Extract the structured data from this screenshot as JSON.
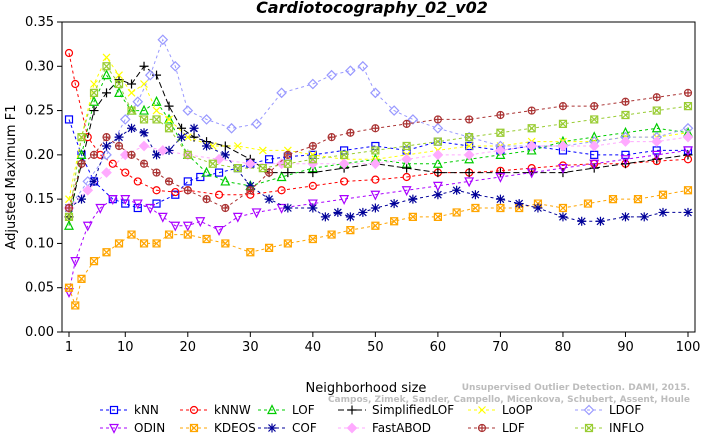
{
  "chart_data": {
    "type": "line",
    "title": "Cardiotocography_02_v02",
    "xlabel": "Neighborhood size",
    "ylabel": "Adjusted Maximum F1",
    "xlim": [
      1,
      100
    ],
    "ylim": [
      0,
      0.35
    ],
    "x_ticks": [
      1,
      10,
      20,
      30,
      40,
      50,
      60,
      70,
      80,
      90,
      100
    ],
    "y_ticks": [
      "0.00",
      "0.05",
      "0.10",
      "0.15",
      "0.20",
      "0.25",
      "0.30",
      "0.35"
    ],
    "grid": false,
    "legend_position": "bottom",
    "series": [
      {
        "name": "kNN",
        "color": "#0000ff",
        "marker": "square",
        "dash": "3,3",
        "x": [
          1,
          3,
          5,
          8,
          10,
          12,
          15,
          18,
          20,
          22,
          25,
          28,
          30,
          33,
          36,
          40,
          45,
          50,
          55,
          60,
          65,
          70,
          75,
          80,
          85,
          90,
          95,
          100
        ],
        "y": [
          0.24,
          0.2,
          0.17,
          0.15,
          0.145,
          0.14,
          0.145,
          0.155,
          0.17,
          0.175,
          0.18,
          0.185,
          0.19,
          0.195,
          0.198,
          0.2,
          0.205,
          0.21,
          0.205,
          0.215,
          0.21,
          0.205,
          0.21,
          0.205,
          0.2,
          0.2,
          0.205,
          0.205
        ]
      },
      {
        "name": "kNNW",
        "color": "#ff0000",
        "marker": "circle",
        "dash": "3,3",
        "x": [
          1,
          2,
          4,
          6,
          8,
          10,
          12,
          15,
          18,
          20,
          25,
          30,
          35,
          40,
          45,
          50,
          55,
          60,
          65,
          70,
          75,
          80,
          85,
          90,
          95,
          100
        ],
        "y": [
          0.315,
          0.28,
          0.22,
          0.2,
          0.19,
          0.18,
          0.17,
          0.16,
          0.158,
          0.16,
          0.155,
          0.155,
          0.16,
          0.165,
          0.17,
          0.172,
          0.175,
          0.18,
          0.18,
          0.182,
          0.185,
          0.188,
          0.19,
          0.19,
          0.193,
          0.195
        ]
      },
      {
        "name": "LOF",
        "color": "#00cc00",
        "marker": "triangle",
        "dash": "3,3",
        "x": [
          1,
          3,
          5,
          7,
          9,
          11,
          13,
          15,
          17,
          20,
          23,
          26,
          30,
          35,
          40,
          45,
          50,
          55,
          60,
          65,
          70,
          75,
          80,
          85,
          90,
          95,
          100
        ],
        "y": [
          0.12,
          0.2,
          0.26,
          0.29,
          0.27,
          0.25,
          0.25,
          0.26,
          0.24,
          0.2,
          0.18,
          0.17,
          0.165,
          0.175,
          0.185,
          0.19,
          0.195,
          0.19,
          0.19,
          0.195,
          0.2,
          0.205,
          0.215,
          0.22,
          0.225,
          0.23,
          0.225
        ]
      },
      {
        "name": "SimplifiedLOF",
        "color": "#000000",
        "marker": "plus",
        "dash": "6,3",
        "x": [
          1,
          3,
          5,
          7,
          9,
          11,
          13,
          15,
          17,
          19,
          21,
          23,
          26,
          30,
          33,
          36,
          40,
          45,
          50,
          55,
          60,
          65,
          70,
          75,
          80,
          85,
          90,
          95,
          100
        ],
        "y": [
          0.13,
          0.19,
          0.25,
          0.27,
          0.285,
          0.28,
          0.3,
          0.29,
          0.255,
          0.23,
          0.22,
          0.215,
          0.21,
          0.195,
          0.18,
          0.18,
          0.18,
          0.185,
          0.19,
          0.185,
          0.18,
          0.18,
          0.18,
          0.18,
          0.18,
          0.185,
          0.19,
          0.195,
          0.2
        ]
      },
      {
        "name": "LoOP",
        "color": "#ffff00",
        "marker": "x",
        "dash": "3,3",
        "x": [
          1,
          3,
          5,
          7,
          9,
          11,
          13,
          15,
          17,
          20,
          24,
          28,
          32,
          36,
          40,
          45,
          50,
          55,
          60,
          65,
          70,
          75,
          80,
          85,
          90,
          95,
          100
        ],
        "y": [
          0.15,
          0.22,
          0.28,
          0.31,
          0.29,
          0.27,
          0.28,
          0.25,
          0.24,
          0.22,
          0.21,
          0.21,
          0.205,
          0.205,
          0.2,
          0.195,
          0.195,
          0.2,
          0.205,
          0.21,
          0.21,
          0.215,
          0.215,
          0.215,
          0.22,
          0.22,
          0.225
        ]
      },
      {
        "name": "LDOF",
        "color": "#9999ff",
        "marker": "diamond",
        "dash": "3,3",
        "x": [
          1,
          4,
          7,
          10,
          12,
          14,
          16,
          18,
          20,
          23,
          27,
          31,
          35,
          40,
          43,
          46,
          48,
          50,
          53,
          56,
          60,
          65,
          70,
          75,
          80,
          85,
          90,
          95,
          100
        ],
        "y": [
          0.14,
          0.17,
          0.2,
          0.24,
          0.26,
          0.29,
          0.33,
          0.3,
          0.25,
          0.24,
          0.23,
          0.235,
          0.27,
          0.28,
          0.29,
          0.295,
          0.3,
          0.27,
          0.25,
          0.24,
          0.23,
          0.22,
          0.21,
          0.21,
          0.21,
          0.215,
          0.22,
          0.22,
          0.23
        ]
      },
      {
        "name": "ODIN",
        "color": "#aa00ff",
        "marker": "triangle-down",
        "dash": "3,3",
        "x": [
          1,
          2,
          4,
          6,
          8,
          10,
          12,
          14,
          16,
          18,
          20,
          22,
          25,
          28,
          31,
          35,
          40,
          45,
          50,
          55,
          60,
          65,
          70,
          75,
          80,
          85,
          90,
          95,
          100
        ],
        "y": [
          0.045,
          0.08,
          0.12,
          0.14,
          0.15,
          0.15,
          0.145,
          0.14,
          0.13,
          0.12,
          0.12,
          0.125,
          0.115,
          0.13,
          0.135,
          0.14,
          0.145,
          0.15,
          0.155,
          0.16,
          0.165,
          0.17,
          0.175,
          0.18,
          0.185,
          0.19,
          0.195,
          0.2,
          0.205
        ]
      },
      {
        "name": "KDEOS",
        "color": "#ffa500",
        "marker": "square-x",
        "dash": "3,3",
        "x": [
          1,
          2,
          3,
          5,
          7,
          9,
          11,
          13,
          15,
          17,
          20,
          23,
          26,
          30,
          33,
          36,
          40,
          43,
          46,
          50,
          53,
          56,
          60,
          63,
          66,
          70,
          73,
          76,
          80,
          84,
          88,
          92,
          96,
          100
        ],
        "y": [
          0.05,
          0.03,
          0.06,
          0.08,
          0.09,
          0.1,
          0.11,
          0.1,
          0.1,
          0.11,
          0.11,
          0.105,
          0.1,
          0.09,
          0.095,
          0.1,
          0.105,
          0.11,
          0.115,
          0.12,
          0.125,
          0.13,
          0.13,
          0.135,
          0.14,
          0.14,
          0.14,
          0.145,
          0.14,
          0.145,
          0.15,
          0.15,
          0.155,
          0.16
        ]
      },
      {
        "name": "COF",
        "color": "#000099",
        "marker": "star",
        "dash": "3,3",
        "x": [
          1,
          3,
          5,
          7,
          9,
          11,
          13,
          15,
          17,
          19,
          21,
          23,
          26,
          30,
          33,
          36,
          40,
          42,
          44,
          46,
          48,
          50,
          53,
          56,
          60,
          63,
          66,
          70,
          73,
          76,
          80,
          83,
          86,
          90,
          93,
          96,
          100
        ],
        "y": [
          0.14,
          0.15,
          0.17,
          0.21,
          0.22,
          0.23,
          0.225,
          0.2,
          0.205,
          0.22,
          0.23,
          0.21,
          0.2,
          0.165,
          0.15,
          0.14,
          0.14,
          0.13,
          0.135,
          0.13,
          0.135,
          0.14,
          0.145,
          0.15,
          0.155,
          0.16,
          0.155,
          0.15,
          0.145,
          0.14,
          0.13,
          0.125,
          0.125,
          0.13,
          0.13,
          0.135,
          0.135
        ]
      },
      {
        "name": "FastABOD",
        "color": "#ffaaff",
        "marker": "diamond-filled",
        "dash": "3,3",
        "x": [
          1,
          4,
          7,
          10,
          13,
          16,
          20,
          25,
          30,
          35,
          40,
          45,
          50,
          55,
          60,
          65,
          70,
          75,
          80,
          85,
          90,
          95,
          100
        ],
        "y": [
          0.14,
          0.16,
          0.18,
          0.2,
          0.21,
          0.205,
          0.2,
          0.195,
          0.19,
          0.19,
          0.19,
          0.19,
          0.19,
          0.195,
          0.2,
          0.2,
          0.205,
          0.21,
          0.21,
          0.21,
          0.215,
          0.215,
          0.22
        ]
      },
      {
        "name": "LDF",
        "color": "#aa3333",
        "marker": "circle-plus",
        "dash": "3,3",
        "x": [
          1,
          3,
          5,
          7,
          9,
          11,
          13,
          15,
          17,
          20,
          23,
          26,
          30,
          33,
          36,
          40,
          43,
          46,
          50,
          55,
          60,
          65,
          70,
          75,
          80,
          85,
          90,
          95,
          100
        ],
        "y": [
          0.14,
          0.19,
          0.2,
          0.22,
          0.21,
          0.2,
          0.19,
          0.18,
          0.17,
          0.16,
          0.15,
          0.14,
          0.16,
          0.18,
          0.2,
          0.21,
          0.22,
          0.225,
          0.23,
          0.235,
          0.24,
          0.24,
          0.245,
          0.25,
          0.255,
          0.255,
          0.26,
          0.265,
          0.27
        ]
      },
      {
        "name": "INFLO",
        "color": "#99cc33",
        "marker": "square-x",
        "dash": "3,3",
        "x": [
          1,
          3,
          5,
          7,
          9,
          11,
          13,
          15,
          17,
          20,
          24,
          28,
          32,
          36,
          40,
          45,
          50,
          55,
          60,
          65,
          70,
          75,
          80,
          85,
          90,
          95,
          100
        ],
        "y": [
          0.13,
          0.22,
          0.27,
          0.3,
          0.28,
          0.25,
          0.24,
          0.24,
          0.23,
          0.2,
          0.19,
          0.185,
          0.185,
          0.19,
          0.195,
          0.2,
          0.205,
          0.21,
          0.215,
          0.22,
          0.225,
          0.23,
          0.235,
          0.24,
          0.245,
          0.25,
          0.255
        ]
      }
    ]
  },
  "watermark": {
    "line1": "Unsupervised Outlier Detection. DAMI, 2015.",
    "line2": "Campos, Zimek, Sander, Campello, Micenkova, Schubert, Assent, Houle"
  }
}
